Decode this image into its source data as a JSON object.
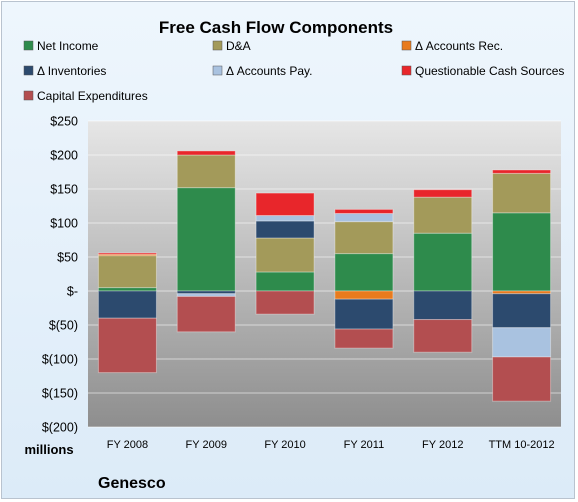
{
  "chart_data": {
    "type": "bar",
    "stacked": true,
    "title": "Free Cash Flow Components",
    "unit_label": "millions",
    "company": "Genesco",
    "categories": [
      "FY 2008",
      "FY 2009",
      "FY 2010",
      "FY 2011",
      "FY 2012",
      "TTM 10-2012"
    ],
    "ylim": [
      -200,
      250
    ],
    "yticks": [
      250,
      200,
      150,
      100,
      50,
      0,
      -50,
      -100,
      -150,
      -200
    ],
    "ytick_labels": [
      "$250",
      "$200",
      "$150",
      "$100",
      "$50",
      "$-",
      "$(50)",
      "$(100)",
      "$(150)",
      "$(200)"
    ],
    "grid": true,
    "legend_position": "top",
    "series": [
      {
        "name": "Net Income",
        "color": "#2e8b4c",
        "values": [
          5,
          152,
          28,
          55,
          85,
          115
        ]
      },
      {
        "name": "D&A",
        "color": "#a39a5a",
        "values": [
          47,
          48,
          50,
          47,
          53,
          58
        ]
      },
      {
        "name": "Δ Accounts Rec.",
        "color": "#e87b1e",
        "values": [
          2,
          0,
          0,
          -12,
          0,
          -4
        ]
      },
      {
        "name": "Δ Inventories",
        "color": "#2c4a6e",
        "values": [
          -40,
          -4,
          25,
          -44,
          -42,
          -50
        ]
      },
      {
        "name": "Δ Accounts Pay.",
        "color": "#a9c2e0",
        "values": [
          0,
          -4,
          8,
          12,
          0,
          -43
        ]
      },
      {
        "name": "Questionable Cash Sources",
        "color": "#e8262b",
        "values": [
          2,
          6,
          33,
          6,
          11,
          5
        ]
      },
      {
        "name": "Capital Expenditures",
        "color": "#b34e50",
        "values": [
          -80,
          -52,
          -34,
          -28,
          -48,
          -65
        ]
      }
    ]
  }
}
